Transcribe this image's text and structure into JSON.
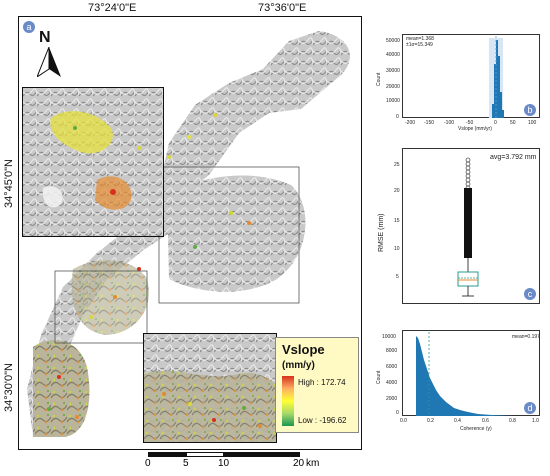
{
  "map": {
    "panel_label": "a",
    "lon_labels": [
      "73°24'0\"E",
      "73°36'0\"E"
    ],
    "lat_labels": [
      "34°45'0\"N",
      "34°30'0\"N"
    ],
    "north_label": "N",
    "scalebar": {
      "ticks": [
        "0",
        "5",
        "10",
        "20"
      ],
      "unit": "km"
    },
    "legend": {
      "title": "Vslope",
      "unit": "(mm/y)",
      "high": "High : 172.74",
      "low": "Low : -196.62",
      "colors": {
        "high": "#d7301f",
        "mid": "#ffff33",
        "low": "#1a9850"
      }
    }
  },
  "histogram_top": {
    "panel_label": "b",
    "stats_line1": "mean=1.368",
    "stats_line2": "±1σ=15.349",
    "ylabel": "Count",
    "xlabel": "Vslope (mm/yr)",
    "y_ticks": [
      "50000",
      "40000",
      "30000",
      "20000",
      "10000",
      "0"
    ],
    "x_ticks": [
      "-200",
      "-150",
      "-100",
      "-50",
      "0",
      "50",
      "100"
    ]
  },
  "boxplot": {
    "panel_label": "c",
    "annotation": "avg=3.792 mm",
    "ylabel": "RMSE (mm)",
    "y_ticks": [
      "25",
      "20",
      "15",
      "10",
      "5"
    ]
  },
  "histogram_bottom": {
    "panel_label": "d",
    "stats": "mean=0.197",
    "ylabel": "Count",
    "xlabel": "Coherence (γ)",
    "y_ticks": [
      "10000",
      "8000",
      "6000",
      "4000",
      "2000",
      "0"
    ],
    "x_ticks": [
      "0.0",
      "0.2",
      "0.4",
      "0.6",
      "0.8",
      "1.0"
    ]
  }
}
